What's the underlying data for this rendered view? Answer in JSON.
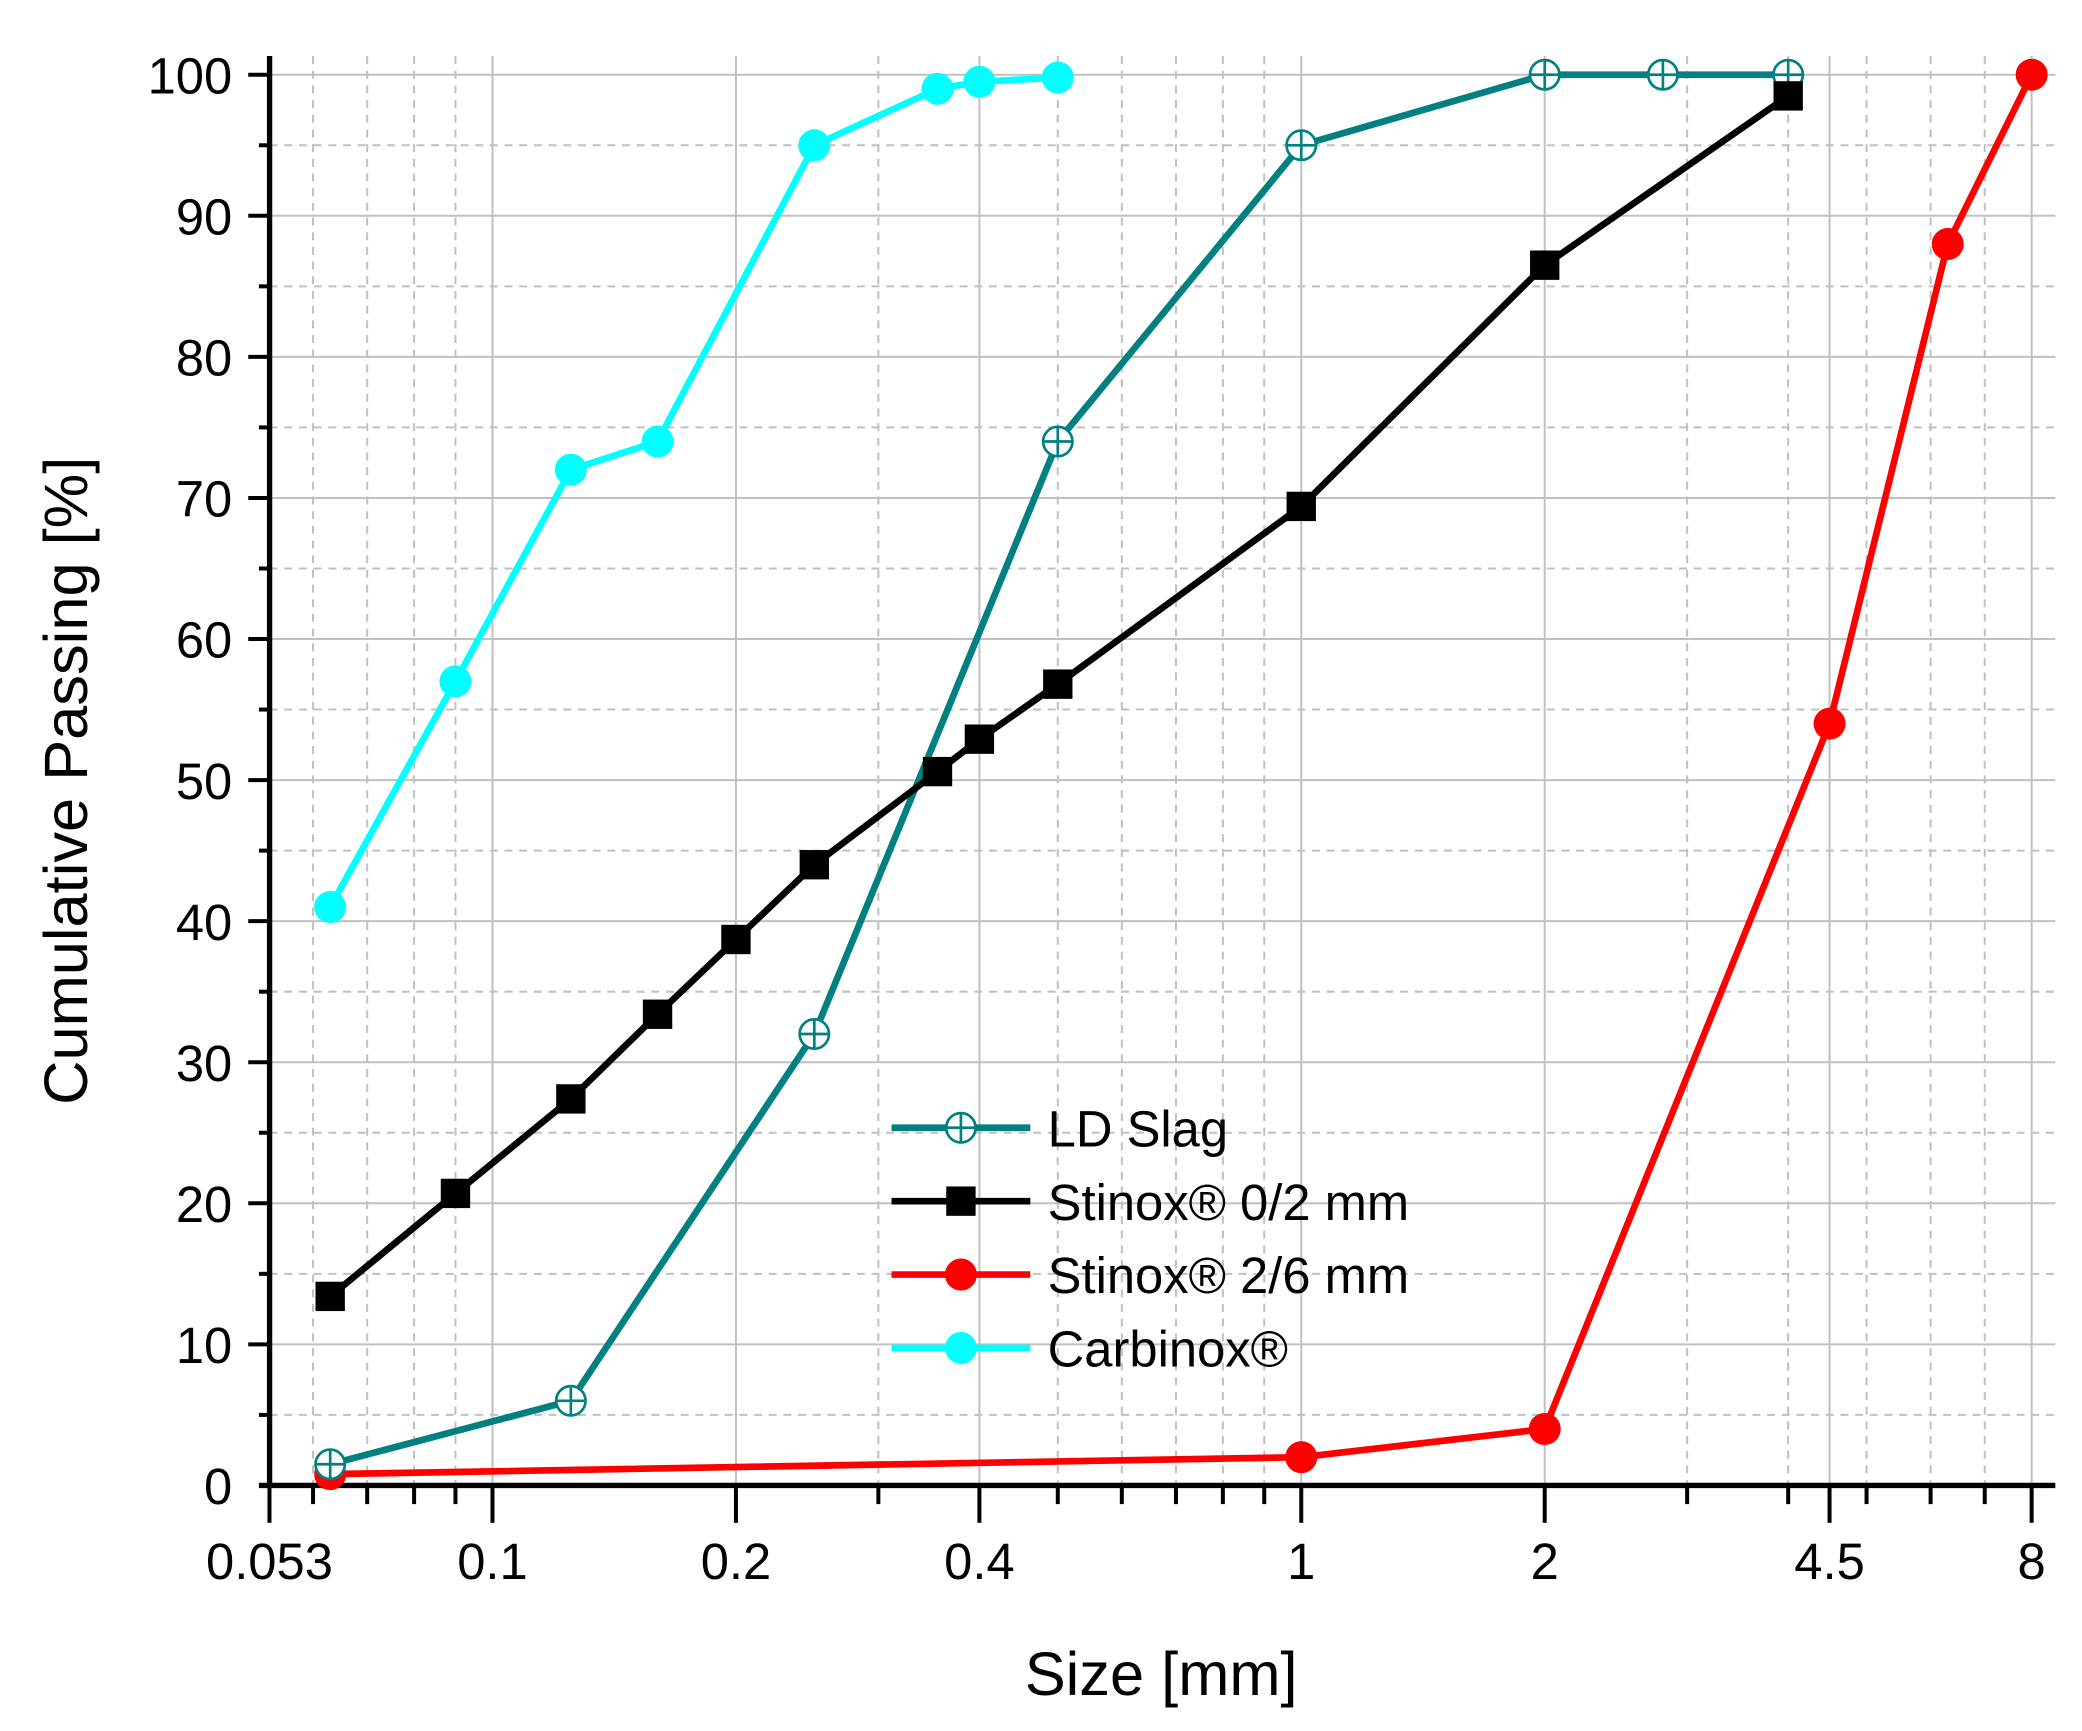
{
  "chart_data": {
    "type": "line",
    "title": "",
    "xlabel": "Size [mm]",
    "ylabel": "Cumulative Passing [%]",
    "xscale": "log",
    "xlim": [
      0.053,
      8.56
    ],
    "ylim": [
      0,
      100
    ],
    "x_ticks": [
      0.053,
      0.1,
      0.2,
      0.4,
      1,
      2,
      4.5,
      8
    ],
    "x_tick_labels": [
      "0.053",
      "0.1",
      "0.2",
      "0.4",
      "1",
      "2",
      "4.5",
      "8"
    ],
    "x_minor_ticks": [
      0.06,
      0.07,
      0.08,
      0.09,
      0.3,
      0.5,
      0.6,
      0.7,
      0.8,
      0.9,
      3,
      4,
      5,
      6,
      7
    ],
    "y_ticks": [
      0,
      10,
      20,
      30,
      40,
      50,
      60,
      70,
      80,
      90,
      100
    ],
    "y_tick_labels": [
      "0",
      "10",
      "20",
      "30",
      "40",
      "50",
      "60",
      "70",
      "80",
      "90",
      "100"
    ],
    "grid": true,
    "legend_position": "lower-center",
    "series": [
      {
        "name": "LD Slag",
        "color": "#008080",
        "marker": "circle-plus",
        "x": [
          0.063,
          0.125,
          0.25,
          0.5,
          1,
          2,
          2.8,
          4
        ],
        "y": [
          1.5,
          6,
          32,
          74,
          95,
          100,
          100,
          100
        ]
      },
      {
        "name": "Stinox® 0/2 mm",
        "color": "#000000",
        "marker": "square",
        "x": [
          0.063,
          0.09,
          0.125,
          0.16,
          0.2,
          0.25,
          0.355,
          0.4,
          0.5,
          1,
          2,
          4
        ],
        "y": [
          13.4,
          20.7,
          27.4,
          33.4,
          38.7,
          44,
          50.6,
          52.9,
          56.8,
          69.4,
          86.5,
          98.5
        ]
      },
      {
        "name": "Stinox® 2/6 mm",
        "color": "#ff0000",
        "marker": "circle",
        "x": [
          0.063,
          1,
          2,
          4.5,
          6.3,
          8
        ],
        "y": [
          0.8,
          2,
          4,
          54,
          88,
          100
        ]
      },
      {
        "name": "Carbinox®",
        "color": "#00ffff",
        "marker": "circle",
        "x": [
          0.063,
          0.09,
          0.125,
          0.16,
          0.25,
          0.355,
          0.4,
          0.5
        ],
        "y": [
          41,
          57,
          72,
          74,
          95,
          99,
          99.5,
          99.8
        ]
      }
    ]
  }
}
